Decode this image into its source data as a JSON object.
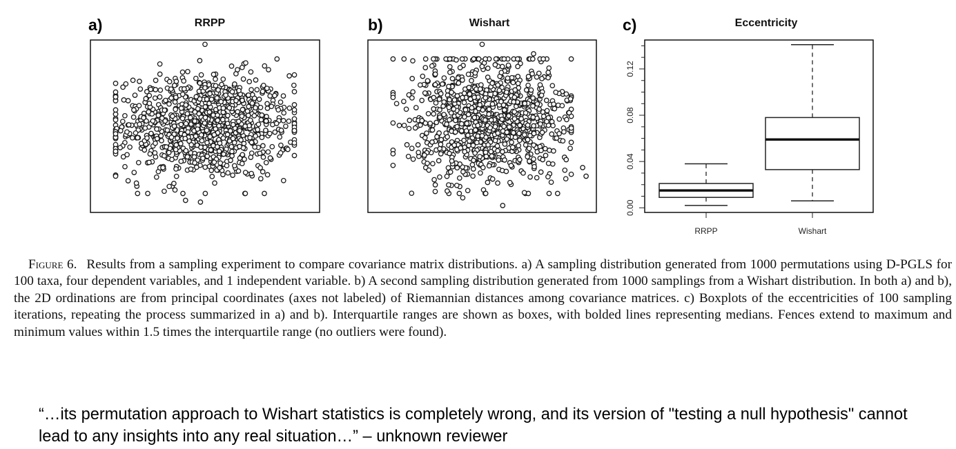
{
  "figure": {
    "panels": [
      {
        "letter": "a)",
        "title": "RRPP"
      },
      {
        "letter": "b)",
        "title": "Wishart"
      },
      {
        "letter": "c)",
        "title": "Eccentricity"
      }
    ],
    "caption_label": "Figure 6.",
    "caption_text": "Results from a sampling experiment to compare covariance matrix distributions. a) A sampling distribution generated from 1000 permutations using D-PGLS for 100 taxa, four dependent variables, and 1 independent variable. b) A second sampling distribution generated from 1000 samplings from a Wishart distribution. In both a) and b), the 2D ordinations are from principal coordinates (axes not labeled) of Riemannian distances among covariance matrices. c) Boxplots of the eccentricities of 100 sampling iterations, repeating the process summarized in a) and b). Interquartile ranges are shown as boxes, with bolded lines representing medians. Fences extend to maximum and minimum values within 1.5 times the interquartile range (no outliers were found)."
  },
  "quote": "“…its permutation approach to Wishart statistics is completely wrong, and its version of  \"testing a null hypothesis\" cannot lead to any insights into any real situation…” – unknown reviewer",
  "chart_data": [
    {
      "type": "scatter",
      "title": "RRPP",
      "n_points": 1000,
      "center": [
        0.0,
        0.0
      ],
      "spread": [
        0.38,
        0.3
      ],
      "xlim": [
        -1.0,
        1.0
      ],
      "ylim": [
        -1.0,
        1.0
      ],
      "outliers": [
        {
          "x": 0.0,
          "y": 0.95
        },
        {
          "x": -0.68,
          "y": -0.33
        },
        {
          "x": 0.58,
          "y": 0.23
        },
        {
          "x": 0.64,
          "y": 0.19
        },
        {
          "x": -0.5,
          "y": -0.78
        },
        {
          "x": -0.17,
          "y": -0.86
        },
        {
          "x": -0.04,
          "y": -0.88
        },
        {
          "x": 0.4,
          "y": 0.63
        }
      ],
      "grid": false,
      "axes_labeled": false
    },
    {
      "type": "scatter",
      "title": "Wishart",
      "n_points": 1000,
      "center": [
        0.07,
        0.1
      ],
      "spread": [
        0.35,
        0.36
      ],
      "xlim": [
        -1.0,
        1.0
      ],
      "ylim": [
        -1.0,
        1.0
      ],
      "outliers": [
        {
          "x": 0.0,
          "y": 0.95
        },
        {
          "x": 0.45,
          "y": 0.84
        },
        {
          "x": -0.48,
          "y": -0.43
        },
        {
          "x": -0.41,
          "y": -0.68
        },
        {
          "x": 0.88,
          "y": -0.48
        },
        {
          "x": 0.91,
          "y": -0.58
        },
        {
          "x": -0.17,
          "y": -0.83
        },
        {
          "x": 0.37,
          "y": -0.77
        },
        {
          "x": 0.18,
          "y": -0.92
        },
        {
          "x": -0.21,
          "y": 0.56
        }
      ],
      "grid": false,
      "axes_labeled": false
    },
    {
      "type": "boxplot",
      "title": "Eccentricity",
      "categories": [
        "RRPP",
        "Wishart"
      ],
      "series": [
        {
          "min": 0.002,
          "q1": 0.009,
          "median": 0.015,
          "q3": 0.021,
          "max": 0.038
        },
        {
          "min": 0.006,
          "q1": 0.033,
          "median": 0.059,
          "q3": 0.078,
          "max": 0.141
        }
      ],
      "ylim": [
        -0.004,
        0.145
      ],
      "yticks": [
        "0.00",
        "0.04",
        "0.08",
        "0.12"
      ],
      "grid": false
    }
  ]
}
